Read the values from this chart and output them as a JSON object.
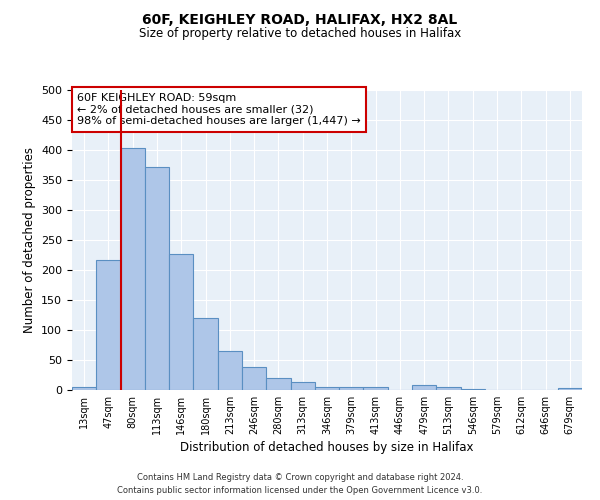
{
  "title": "60F, KEIGHLEY ROAD, HALIFAX, HX2 8AL",
  "subtitle": "Size of property relative to detached houses in Halifax",
  "xlabel": "Distribution of detached houses by size in Halifax",
  "ylabel": "Number of detached properties",
  "bar_labels": [
    "13sqm",
    "47sqm",
    "80sqm",
    "113sqm",
    "146sqm",
    "180sqm",
    "213sqm",
    "246sqm",
    "280sqm",
    "313sqm",
    "346sqm",
    "379sqm",
    "413sqm",
    "446sqm",
    "479sqm",
    "513sqm",
    "546sqm",
    "579sqm",
    "612sqm",
    "646sqm",
    "679sqm"
  ],
  "bar_values": [
    5,
    216,
    403,
    372,
    227,
    120,
    65,
    39,
    20,
    14,
    5,
    5,
    5,
    0,
    8,
    5,
    2,
    0,
    0,
    0,
    3
  ],
  "bar_color": "#aec6e8",
  "bar_edge_color": "#5a8fc2",
  "ylim": [
    0,
    500
  ],
  "yticks": [
    0,
    50,
    100,
    150,
    200,
    250,
    300,
    350,
    400,
    450,
    500
  ],
  "vline_x": 1.5,
  "vline_color": "#cc0000",
  "annotation_title": "60F KEIGHLEY ROAD: 59sqm",
  "annotation_line1": "← 2% of detached houses are smaller (32)",
  "annotation_line2": "98% of semi-detached houses are larger (1,447) →",
  "annotation_box_color": "#ffffff",
  "annotation_box_edge_color": "#cc0000",
  "footer1": "Contains HM Land Registry data © Crown copyright and database right 2024.",
  "footer2": "Contains public sector information licensed under the Open Government Licence v3.0.",
  "background_color": "#e8f0f8",
  "fig_background": "#ffffff"
}
